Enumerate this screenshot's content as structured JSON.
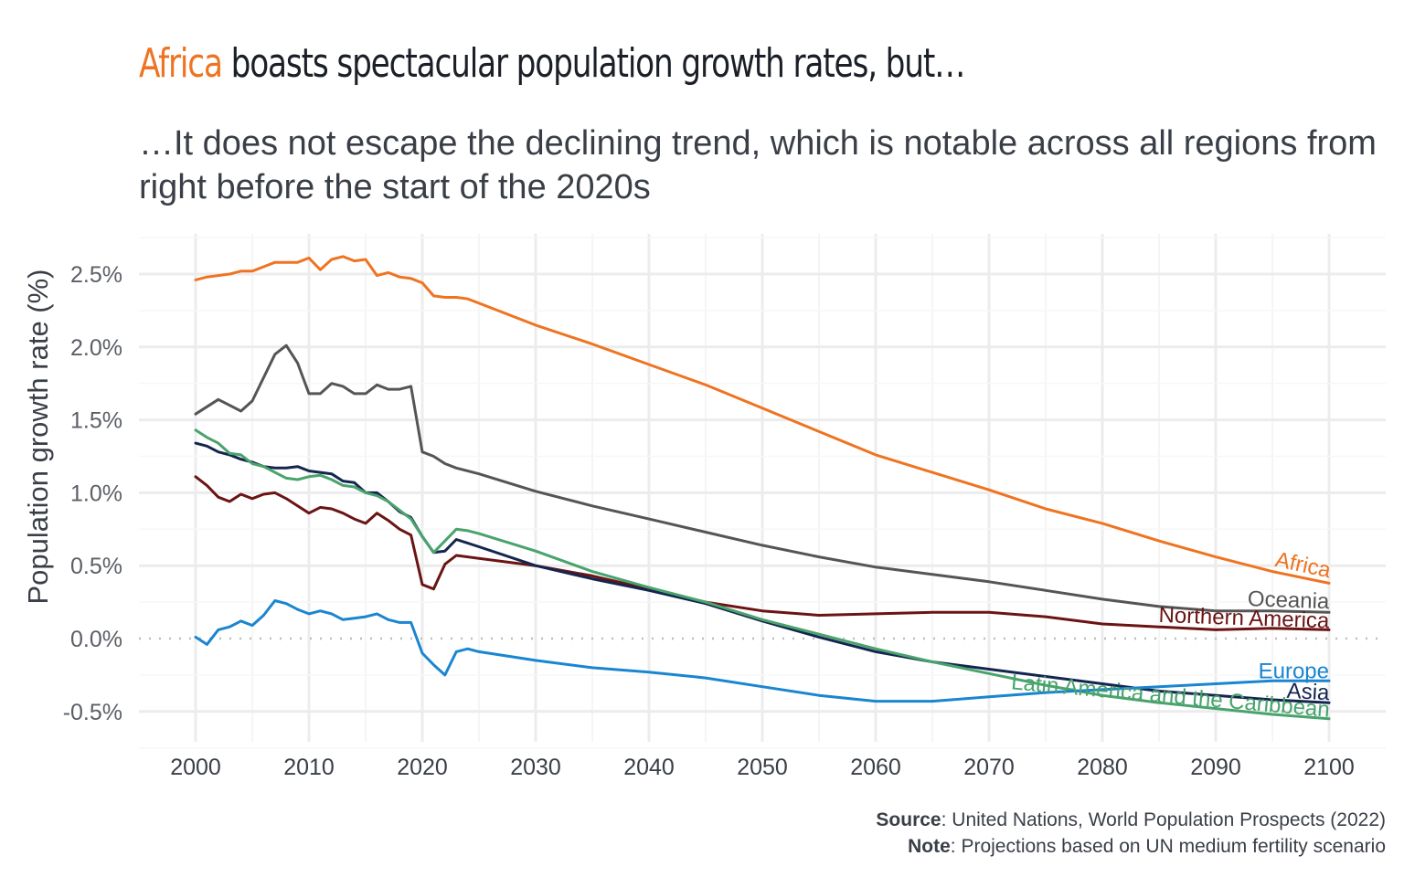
{
  "header": {
    "title_highlight": "Africa",
    "title_rest": " boasts spectacular population growth rates, but…",
    "subtitle": "…It does not escape the declining trend, which is notable across all regions from right before the start of the 2020s"
  },
  "caption": {
    "source_label": "Source",
    "source_text": ": United Nations, World Population Prospects (2022)",
    "note_label": "Note",
    "note_text": ": Projections based on UN medium fertility scenario"
  },
  "chart_data": {
    "type": "line",
    "title": "Africa boasts spectacular population growth rates, but…",
    "subtitle": "…It does not escape the declining trend, which is notable across all regions from right before the start of the 2020s",
    "xlabel": "",
    "ylabel": "Population growth rate (%)",
    "xlim": [
      2000,
      2100
    ],
    "ylim": [
      -0.7,
      2.75
    ],
    "x_ticks": [
      2000,
      2010,
      2020,
      2030,
      2040,
      2050,
      2060,
      2070,
      2080,
      2090,
      2100
    ],
    "x_tick_labels": [
      "2000",
      "2010",
      "2020",
      "2030",
      "2040",
      "2050",
      "2060",
      "2070",
      "2080",
      "2090",
      "2100"
    ],
    "y_ticks": [
      -0.5,
      0.0,
      0.5,
      1.0,
      1.5,
      2.0,
      2.5
    ],
    "y_tick_labels": [
      "-0.5%",
      "0.0%",
      "0.5%",
      "1.0%",
      "1.5%",
      "2.0%",
      "2.5%"
    ],
    "grid": true,
    "zero_line": "dotted",
    "legend": "direct labels at line ends (right)",
    "series": [
      {
        "name": "Africa",
        "color": "#ee7421",
        "x": [
          2000,
          2001,
          2002,
          2003,
          2004,
          2005,
          2006,
          2007,
          2008,
          2009,
          2010,
          2011,
          2012,
          2013,
          2014,
          2015,
          2016,
          2017,
          2018,
          2019,
          2020,
          2021,
          2022,
          2023,
          2024,
          2025,
          2030,
          2035,
          2040,
          2045,
          2050,
          2055,
          2060,
          2065,
          2070,
          2075,
          2080,
          2085,
          2090,
          2095,
          2100
        ],
        "y": [
          2.46,
          2.48,
          2.49,
          2.5,
          2.52,
          2.52,
          2.55,
          2.58,
          2.58,
          2.58,
          2.61,
          2.53,
          2.6,
          2.62,
          2.59,
          2.6,
          2.49,
          2.51,
          2.48,
          2.47,
          2.44,
          2.35,
          2.34,
          2.34,
          2.33,
          2.3,
          2.15,
          2.02,
          1.88,
          1.74,
          1.58,
          1.42,
          1.26,
          1.14,
          1.02,
          0.89,
          0.79,
          0.67,
          0.56,
          0.46,
          0.38
        ]
      },
      {
        "name": "Oceania",
        "color": "#555555",
        "x": [
          2000,
          2002,
          2004,
          2005,
          2007,
          2008,
          2009,
          2010,
          2011,
          2012,
          2013,
          2014,
          2015,
          2016,
          2017,
          2018,
          2019,
          2020,
          2021,
          2022,
          2023,
          2025,
          2030,
          2035,
          2040,
          2045,
          2050,
          2055,
          2060,
          2065,
          2070,
          2075,
          2080,
          2085,
          2090,
          2095,
          2100
        ],
        "y": [
          1.54,
          1.64,
          1.56,
          1.63,
          1.95,
          2.01,
          1.89,
          1.68,
          1.68,
          1.75,
          1.73,
          1.68,
          1.68,
          1.74,
          1.71,
          1.71,
          1.73,
          1.28,
          1.25,
          1.2,
          1.17,
          1.13,
          1.01,
          0.91,
          0.82,
          0.73,
          0.64,
          0.56,
          0.49,
          0.44,
          0.39,
          0.33,
          0.27,
          0.22,
          0.19,
          0.19,
          0.18
        ]
      },
      {
        "name": "Northern America",
        "color": "#6b1414",
        "x": [
          2000,
          2001,
          2002,
          2003,
          2004,
          2005,
          2006,
          2007,
          2008,
          2009,
          2010,
          2011,
          2012,
          2013,
          2014,
          2015,
          2016,
          2017,
          2018,
          2019,
          2020,
          2021,
          2022,
          2023,
          2025,
          2030,
          2035,
          2040,
          2045,
          2050,
          2055,
          2060,
          2065,
          2070,
          2075,
          2080,
          2085,
          2090,
          2095,
          2100
        ],
        "y": [
          1.11,
          1.05,
          0.97,
          0.94,
          0.99,
          0.96,
          0.99,
          1.0,
          0.96,
          0.91,
          0.86,
          0.9,
          0.89,
          0.86,
          0.82,
          0.79,
          0.86,
          0.81,
          0.75,
          0.71,
          0.37,
          0.34,
          0.51,
          0.57,
          0.55,
          0.5,
          0.43,
          0.34,
          0.25,
          0.19,
          0.16,
          0.17,
          0.18,
          0.18,
          0.15,
          0.1,
          0.08,
          0.06,
          0.07,
          0.06
        ]
      },
      {
        "name": "Asia",
        "color": "#14254f",
        "x": [
          2000,
          2001,
          2002,
          2003,
          2004,
          2005,
          2006,
          2007,
          2008,
          2009,
          2010,
          2011,
          2012,
          2013,
          2014,
          2015,
          2016,
          2017,
          2018,
          2019,
          2020,
          2021,
          2022,
          2023,
          2025,
          2030,
          2035,
          2040,
          2045,
          2050,
          2055,
          2060,
          2065,
          2070,
          2075,
          2080,
          2085,
          2090,
          2095,
          2100
        ],
        "y": [
          1.34,
          1.32,
          1.28,
          1.26,
          1.23,
          1.21,
          1.18,
          1.17,
          1.17,
          1.18,
          1.15,
          1.14,
          1.13,
          1.08,
          1.07,
          1.0,
          1.0,
          0.94,
          0.87,
          0.83,
          0.7,
          0.59,
          0.6,
          0.68,
          0.63,
          0.5,
          0.41,
          0.33,
          0.24,
          0.12,
          0.01,
          -0.09,
          -0.16,
          -0.21,
          -0.26,
          -0.31,
          -0.36,
          -0.39,
          -0.42,
          -0.44
        ]
      },
      {
        "name": "Latin America and the Caribbean",
        "color": "#49a36c",
        "x": [
          2000,
          2001,
          2002,
          2003,
          2004,
          2005,
          2006,
          2007,
          2008,
          2009,
          2010,
          2011,
          2012,
          2013,
          2014,
          2015,
          2016,
          2017,
          2018,
          2019,
          2020,
          2021,
          2022,
          2023,
          2024,
          2025,
          2030,
          2035,
          2040,
          2045,
          2050,
          2055,
          2060,
          2065,
          2070,
          2075,
          2080,
          2085,
          2090,
          2095,
          2100
        ],
        "y": [
          1.43,
          1.38,
          1.34,
          1.27,
          1.26,
          1.2,
          1.18,
          1.14,
          1.1,
          1.09,
          1.11,
          1.12,
          1.09,
          1.05,
          1.04,
          1.0,
          0.98,
          0.94,
          0.88,
          0.82,
          0.7,
          0.59,
          0.67,
          0.75,
          0.74,
          0.72,
          0.6,
          0.46,
          0.35,
          0.25,
          0.13,
          0.03,
          -0.07,
          -0.16,
          -0.24,
          -0.32,
          -0.39,
          -0.44,
          -0.48,
          -0.52,
          -0.55
        ]
      },
      {
        "name": "Europe",
        "color": "#1a85d0",
        "x": [
          2000,
          2001,
          2002,
          2003,
          2004,
          2005,
          2006,
          2007,
          2008,
          2009,
          2010,
          2011,
          2012,
          2013,
          2014,
          2015,
          2016,
          2017,
          2018,
          2019,
          2020,
          2021,
          2022,
          2023,
          2024,
          2025,
          2030,
          2035,
          2040,
          2045,
          2050,
          2055,
          2060,
          2065,
          2070,
          2075,
          2080,
          2085,
          2090,
          2095,
          2100
        ],
        "y": [
          0.01,
          -0.04,
          0.06,
          0.08,
          0.12,
          0.09,
          0.16,
          0.26,
          0.24,
          0.2,
          0.17,
          0.19,
          0.17,
          0.13,
          0.14,
          0.15,
          0.17,
          0.13,
          0.11,
          0.11,
          -0.1,
          -0.18,
          -0.25,
          -0.09,
          -0.07,
          -0.09,
          -0.15,
          -0.2,
          -0.23,
          -0.27,
          -0.33,
          -0.39,
          -0.43,
          -0.43,
          -0.4,
          -0.37,
          -0.35,
          -0.33,
          -0.31,
          -0.29,
          -0.29
        ]
      }
    ]
  }
}
